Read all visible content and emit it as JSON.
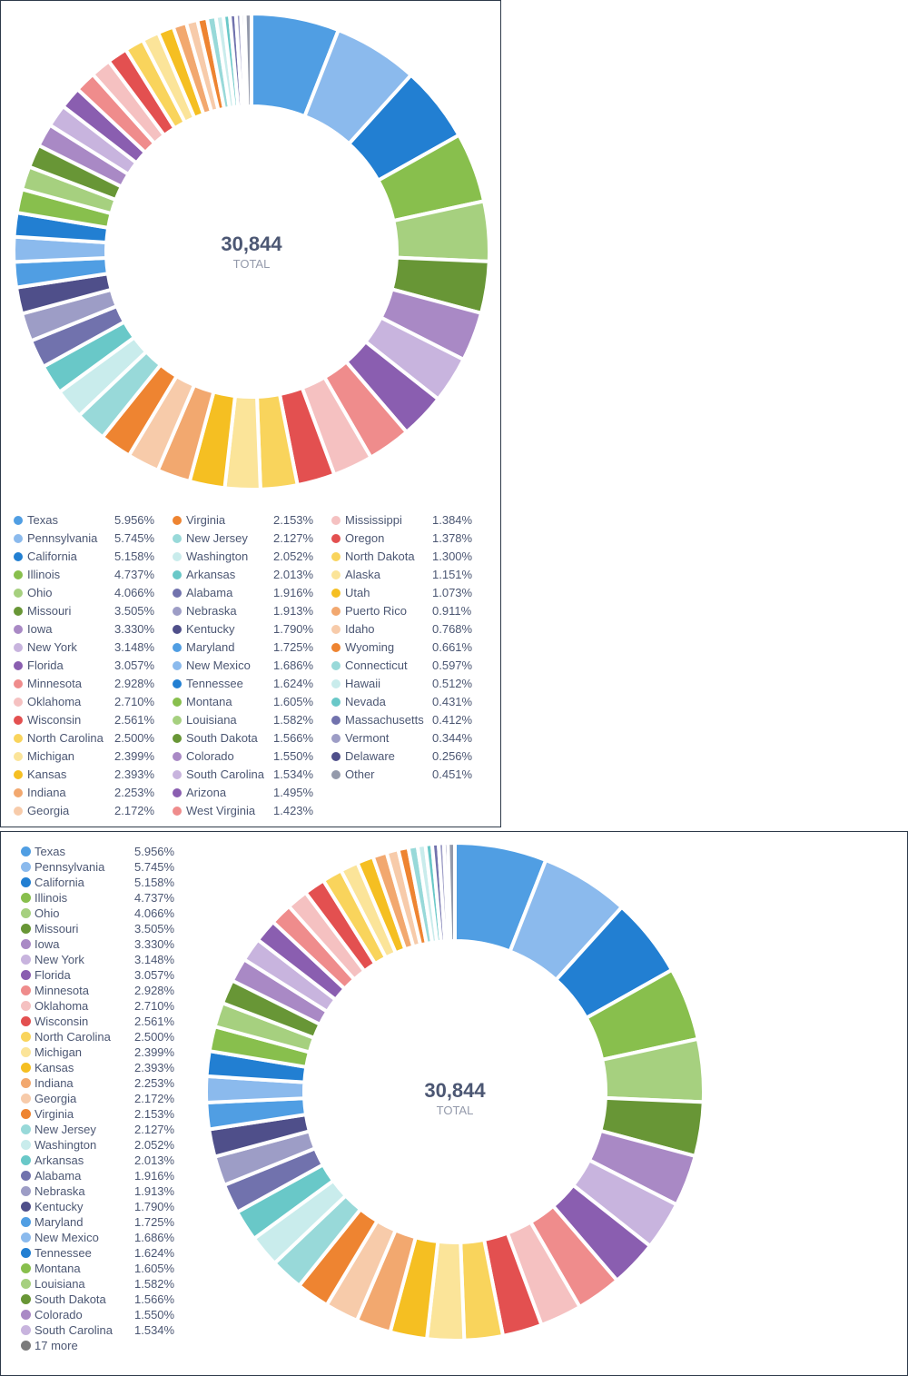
{
  "chart_data": [
    {
      "type": "pie",
      "donut": true,
      "center_value": "30,844",
      "center_label": "TOTAL",
      "legend_placement": "bottom",
      "slices": [
        {
          "label": "Texas",
          "value": 5.956,
          "display": "5.956%",
          "color": "#509ee3"
        },
        {
          "label": "Pennsylvania",
          "value": 5.745,
          "display": "5.745%",
          "color": "#8bbaed"
        },
        {
          "label": "California",
          "value": 5.158,
          "display": "5.158%",
          "color": "#227fd2"
        },
        {
          "label": "Illinois",
          "value": 4.737,
          "display": "4.737%",
          "color": "#88bf4d"
        },
        {
          "label": "Ohio",
          "value": 4.066,
          "display": "4.066%",
          "color": "#a6d07f"
        },
        {
          "label": "Missouri",
          "value": 3.505,
          "display": "3.505%",
          "color": "#689636"
        },
        {
          "label": "Iowa",
          "value": 3.33,
          "display": "3.330%",
          "color": "#a989c5"
        },
        {
          "label": "New York",
          "value": 3.148,
          "display": "3.148%",
          "color": "#c8b4de"
        },
        {
          "label": "Florida",
          "value": 3.057,
          "display": "3.057%",
          "color": "#8a5eb0"
        },
        {
          "label": "Minnesota",
          "value": 2.928,
          "display": "2.928%",
          "color": "#ef8c8c"
        },
        {
          "label": "Oklahoma",
          "value": 2.71,
          "display": "2.710%",
          "color": "#f5c1c1"
        },
        {
          "label": "Wisconsin",
          "value": 2.561,
          "display": "2.561%",
          "color": "#e35050"
        },
        {
          "label": "North Carolina",
          "value": 2.5,
          "display": "2.500%",
          "color": "#f9d45c"
        },
        {
          "label": "Michigan",
          "value": 2.399,
          "display": "2.399%",
          "color": "#fbe499"
        },
        {
          "label": "Kansas",
          "value": 2.393,
          "display": "2.393%",
          "color": "#f5bf22"
        },
        {
          "label": "Indiana",
          "value": 2.253,
          "display": "2.253%",
          "color": "#f2a86f"
        },
        {
          "label": "Georgia",
          "value": 2.172,
          "display": "2.172%",
          "color": "#f7cbaa"
        },
        {
          "label": "Virginia",
          "value": 2.153,
          "display": "2.153%",
          "color": "#ee8431"
        },
        {
          "label": "New Jersey",
          "value": 2.127,
          "display": "2.127%",
          "color": "#98d9d9"
        },
        {
          "label": "Washington",
          "value": 2.052,
          "display": "2.052%",
          "color": "#c9ecec"
        },
        {
          "label": "Arkansas",
          "value": 2.013,
          "display": "2.013%",
          "color": "#69c8c8"
        },
        {
          "label": "Alabama",
          "value": 1.916,
          "display": "1.916%",
          "color": "#7172ad"
        },
        {
          "label": "Nebraska",
          "value": 1.913,
          "display": "1.913%",
          "color": "#9d9dc6"
        },
        {
          "label": "Kentucky",
          "value": 1.79,
          "display": "1.790%",
          "color": "#4f4f8a"
        },
        {
          "label": "Maryland",
          "value": 1.725,
          "display": "1.725%",
          "color": "#509ee3"
        },
        {
          "label": "New Mexico",
          "value": 1.686,
          "display": "1.686%",
          "color": "#8bbaed"
        },
        {
          "label": "Tennessee",
          "value": 1.624,
          "display": "1.624%",
          "color": "#227fd2"
        },
        {
          "label": "Montana",
          "value": 1.605,
          "display": "1.605%",
          "color": "#88bf4d"
        },
        {
          "label": "Louisiana",
          "value": 1.582,
          "display": "1.582%",
          "color": "#a6d07f"
        },
        {
          "label": "South Dakota",
          "value": 1.566,
          "display": "1.566%",
          "color": "#689636"
        },
        {
          "label": "Colorado",
          "value": 1.55,
          "display": "1.550%",
          "color": "#a989c5"
        },
        {
          "label": "South Carolina",
          "value": 1.534,
          "display": "1.534%",
          "color": "#c8b4de"
        },
        {
          "label": "Arizona",
          "value": 1.495,
          "display": "1.495%",
          "color": "#8a5eb0"
        },
        {
          "label": "West Virginia",
          "value": 1.423,
          "display": "1.423%",
          "color": "#ef8c8c"
        },
        {
          "label": "Mississippi",
          "value": 1.384,
          "display": "1.384%",
          "color": "#f5c1c1"
        },
        {
          "label": "Oregon",
          "value": 1.378,
          "display": "1.378%",
          "color": "#e35050"
        },
        {
          "label": "North Dakota",
          "value": 1.3,
          "display": "1.300%",
          "color": "#f9d45c"
        },
        {
          "label": "Alaska",
          "value": 1.151,
          "display": "1.151%",
          "color": "#fbe499"
        },
        {
          "label": "Utah",
          "value": 1.073,
          "display": "1.073%",
          "color": "#f5bf22"
        },
        {
          "label": "Puerto Rico",
          "value": 0.911,
          "display": "0.911%",
          "color": "#f2a86f"
        },
        {
          "label": "Idaho",
          "value": 0.768,
          "display": "0.768%",
          "color": "#f7cbaa"
        },
        {
          "label": "Wyoming",
          "value": 0.661,
          "display": "0.661%",
          "color": "#ee8431"
        },
        {
          "label": "Connecticut",
          "value": 0.597,
          "display": "0.597%",
          "color": "#98d9d9"
        },
        {
          "label": "Hawaii",
          "value": 0.512,
          "display": "0.512%",
          "color": "#c9ecec"
        },
        {
          "label": "Nevada",
          "value": 0.431,
          "display": "0.431%",
          "color": "#69c8c8"
        },
        {
          "label": "Massachusetts",
          "value": 0.412,
          "display": "0.412%",
          "color": "#7172ad"
        },
        {
          "label": "Vermont",
          "value": 0.344,
          "display": "0.344%",
          "color": "#9d9dc6"
        },
        {
          "label": "Delaware",
          "value": 0.256,
          "display": "0.256%",
          "color": "#4f4f8a"
        },
        {
          "label": "Other",
          "value": 0.451,
          "display": "0.451%",
          "color": "#949aab"
        }
      ]
    },
    {
      "type": "pie",
      "donut": true,
      "center_value": "30,844",
      "center_label": "TOTAL",
      "legend_placement": "left",
      "legend_more": "17 more",
      "legend_count": 32,
      "slices_ref": "same as chart 1"
    }
  ]
}
